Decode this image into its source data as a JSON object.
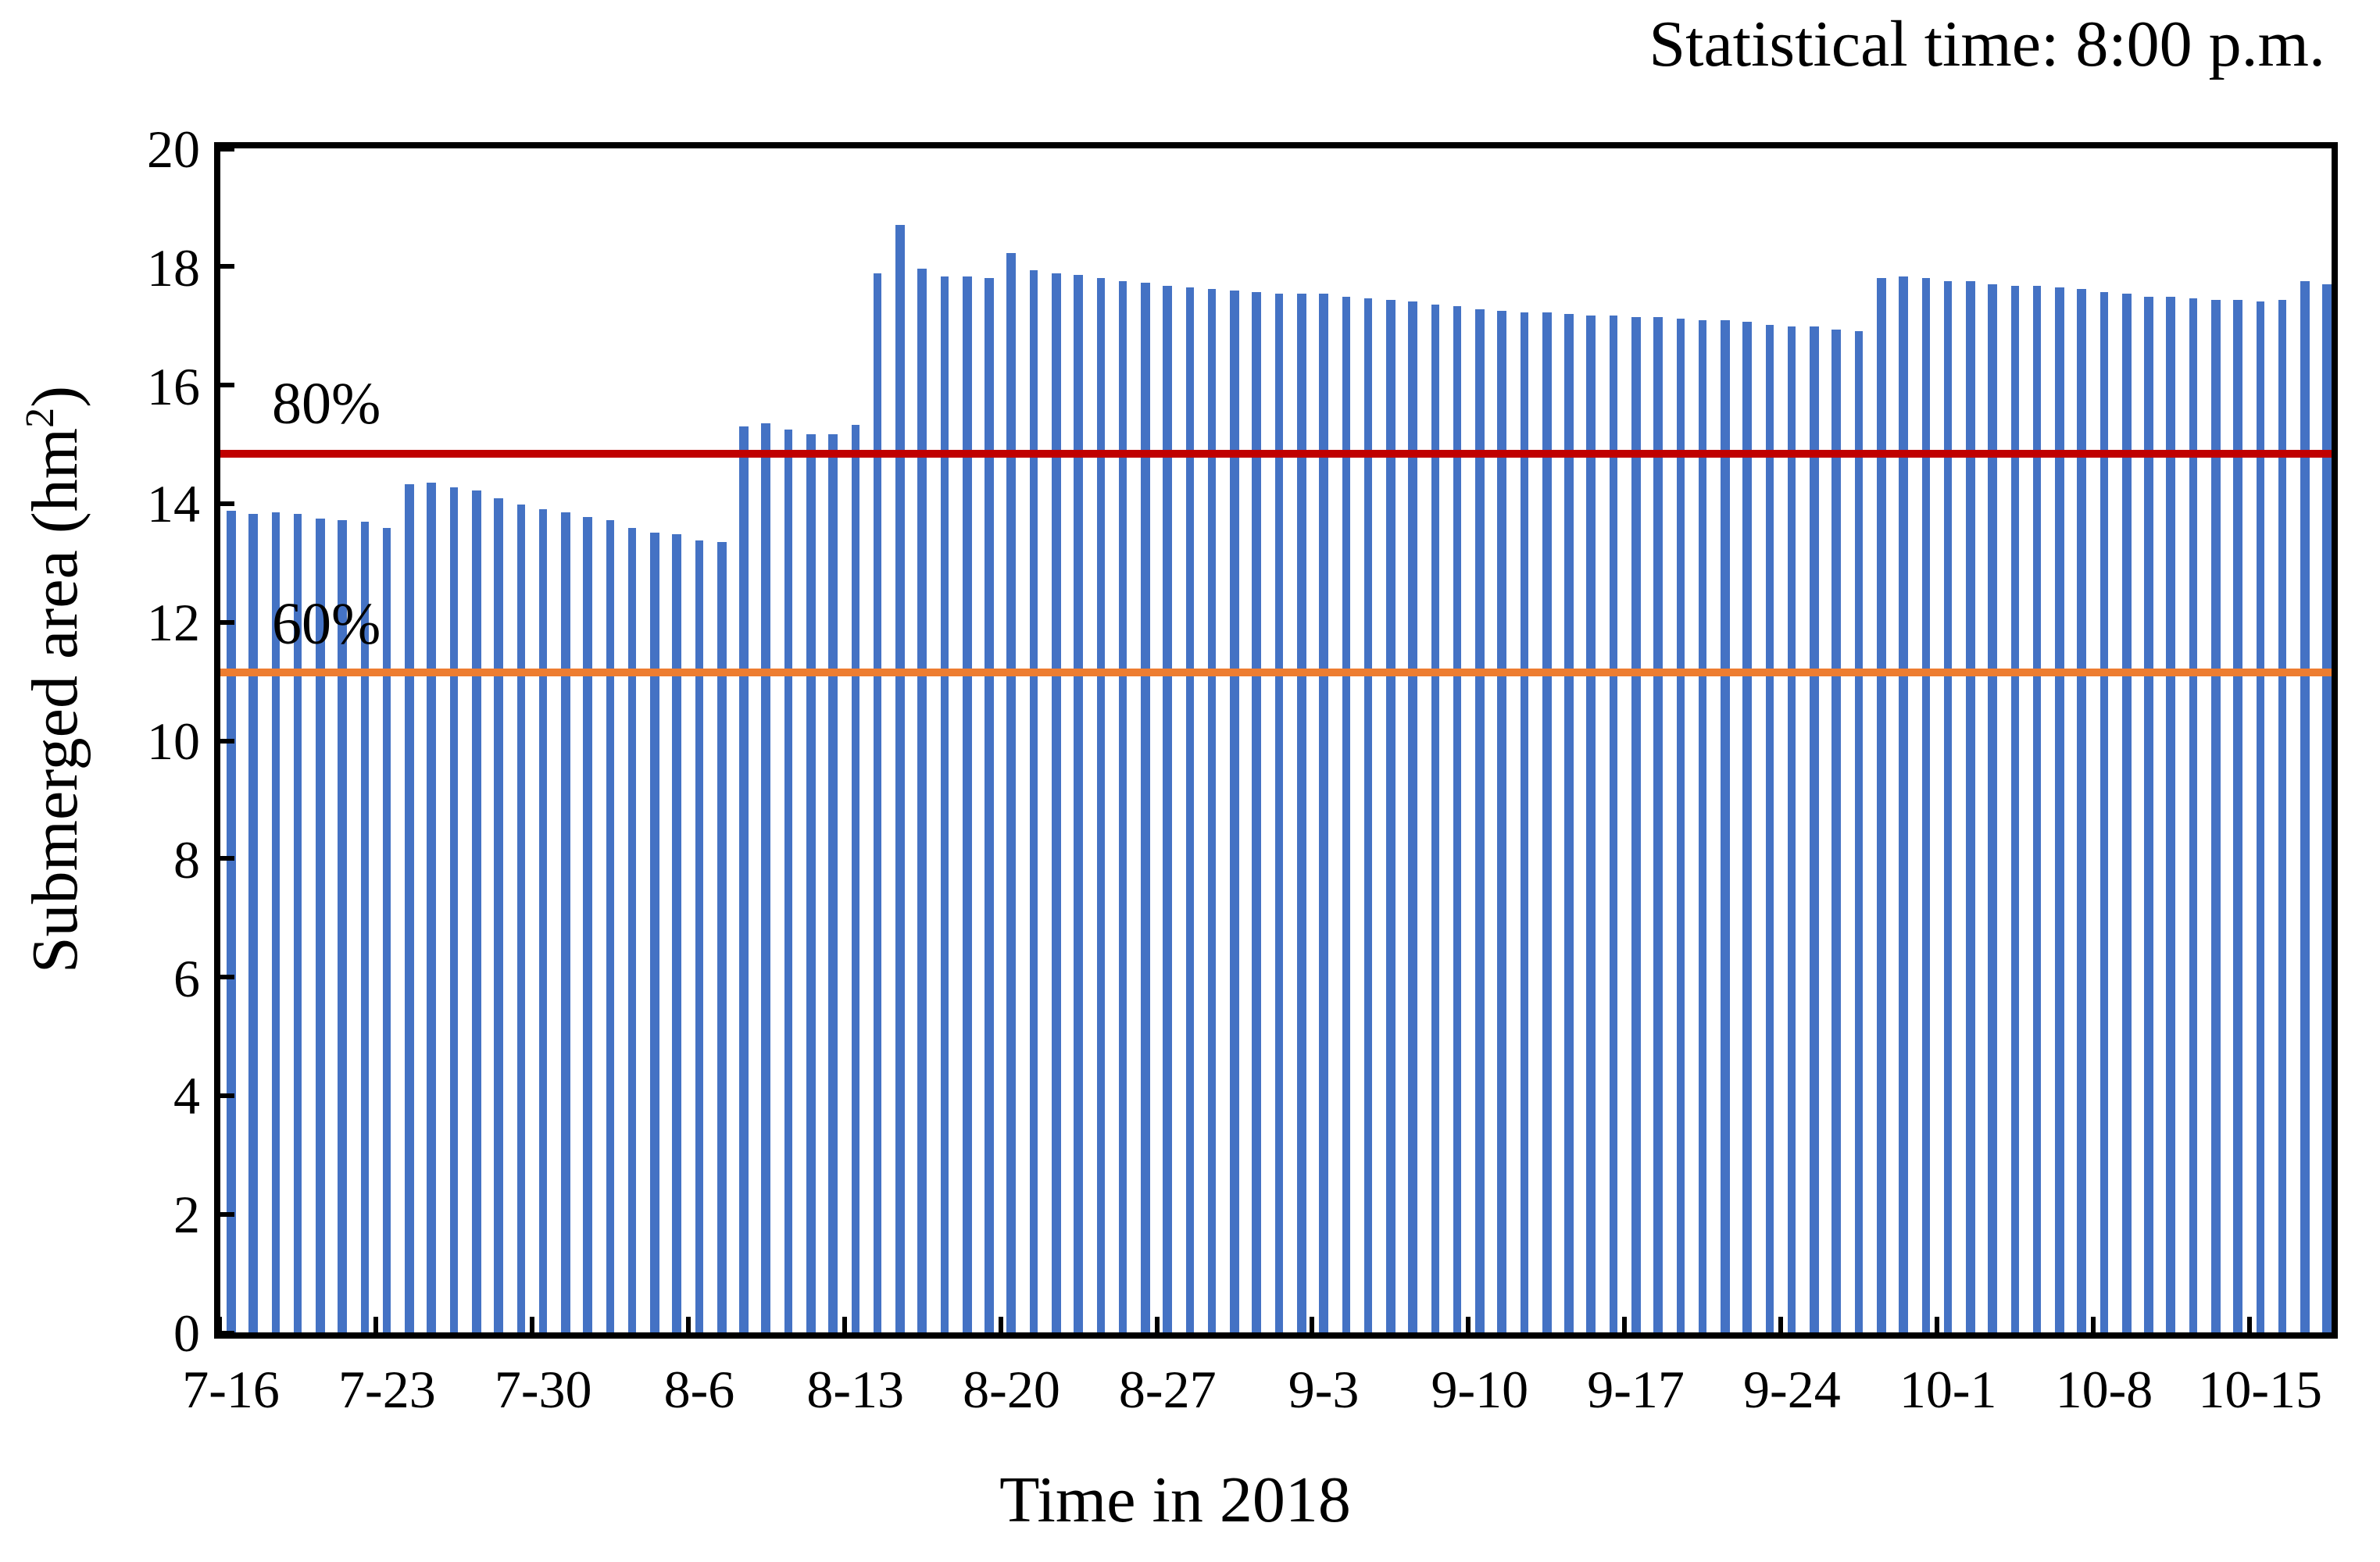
{
  "figure": {
    "note": "Statistical time: 8:00 p.m.",
    "background": "#ffffff"
  },
  "chart_data": {
    "type": "bar",
    "title": "Statistical time: 8:00 p.m.",
    "xlabel": "Time in 2018",
    "ylabel": "Submerged area (hm²)",
    "ylabel_parts": {
      "pre": "Submerged area (hm",
      "sup": "2",
      "post": ")"
    },
    "ylim": [
      0,
      20
    ],
    "yticks": [
      0,
      2,
      4,
      6,
      8,
      10,
      12,
      14,
      16,
      18,
      20
    ],
    "grid": false,
    "legend_position": "none",
    "bar_color": "#4472c4",
    "axis_color": "#000000",
    "xtick_every": 7,
    "xtick_labels": [
      "7-16",
      "7-23",
      "7-30",
      "8-6",
      "8-13",
      "8-20",
      "8-27",
      "9-3",
      "9-10",
      "9-17",
      "9-24",
      "10-1",
      "10-8",
      "10-15"
    ],
    "categories": [
      "7-16",
      "7-17",
      "7-18",
      "7-19",
      "7-20",
      "7-21",
      "7-22",
      "7-23",
      "7-24",
      "7-25",
      "7-26",
      "7-27",
      "7-28",
      "7-29",
      "7-30",
      "7-31",
      "8-1",
      "8-2",
      "8-3",
      "8-4",
      "8-5",
      "8-6",
      "8-7",
      "8-8",
      "8-9",
      "8-10",
      "8-11",
      "8-12",
      "8-13",
      "8-14",
      "8-15",
      "8-16",
      "8-17",
      "8-18",
      "8-19",
      "8-20",
      "8-21",
      "8-22",
      "8-23",
      "8-24",
      "8-25",
      "8-26",
      "8-27",
      "8-28",
      "8-29",
      "8-30",
      "8-31",
      "9-1",
      "9-2",
      "9-3",
      "9-4",
      "9-5",
      "9-6",
      "9-7",
      "9-8",
      "9-9",
      "9-10",
      "9-11",
      "9-12",
      "9-13",
      "9-14",
      "9-15",
      "9-16",
      "9-17",
      "9-18",
      "9-19",
      "9-20",
      "9-21",
      "9-22",
      "9-23",
      "9-24",
      "9-25",
      "9-26",
      "9-27",
      "9-28",
      "9-29",
      "9-30",
      "10-1",
      "10-2",
      "10-3",
      "10-4",
      "10-5",
      "10-6",
      "10-7",
      "10-8",
      "10-9",
      "10-10",
      "10-11",
      "10-12",
      "10-13",
      "10-14",
      "10-15",
      "10-16",
      "10-17",
      "10-18"
    ],
    "values": [
      13.88,
      13.83,
      13.86,
      13.82,
      13.76,
      13.71,
      13.7,
      13.6,
      14.32,
      14.35,
      14.27,
      14.21,
      14.09,
      13.99,
      13.91,
      13.86,
      13.77,
      13.72,
      13.6,
      13.52,
      13.49,
      13.39,
      13.36,
      15.3,
      15.35,
      15.24,
      15.18,
      15.18,
      15.33,
      17.9,
      18.71,
      17.98,
      17.85,
      17.83,
      17.8,
      18.22,
      17.93,
      17.89,
      17.87,
      17.81,
      17.75,
      17.72,
      17.68,
      17.66,
      17.62,
      17.59,
      17.57,
      17.54,
      17.54,
      17.54,
      17.49,
      17.46,
      17.44,
      17.41,
      17.37,
      17.33,
      17.28,
      17.25,
      17.24,
      17.22,
      17.21,
      17.18,
      17.17,
      17.16,
      17.15,
      17.13,
      17.09,
      17.09,
      17.06,
      17.02,
      16.99,
      16.98,
      16.95,
      16.92,
      17.81,
      17.84,
      17.8,
      17.77,
      17.75,
      17.7,
      17.67,
      17.67,
      17.65,
      17.62,
      17.58,
      17.54,
      17.49,
      17.49,
      17.46,
      17.44,
      17.43,
      17.42,
      17.44,
      17.76,
      17.71
    ],
    "ref_lines": [
      {
        "label": "80%",
        "value": 14.85,
        "color": "#c00000"
      },
      {
        "label": "60%",
        "value": 11.14,
        "color": "#ed7d31"
      }
    ]
  }
}
